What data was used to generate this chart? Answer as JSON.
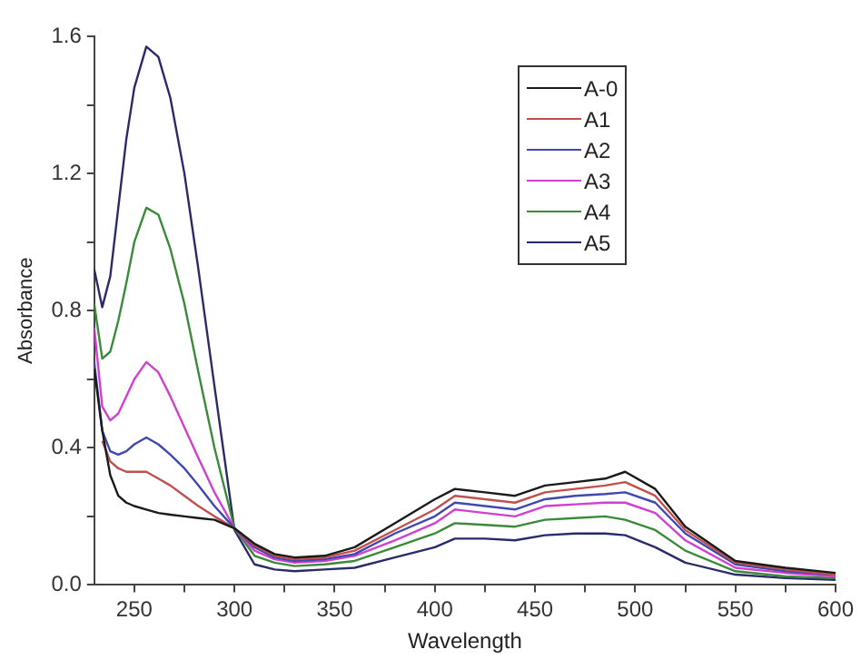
{
  "chart_data": {
    "type": "line",
    "xlabel": "Wavelength",
    "ylabel": "Absorbance",
    "legend": "top right",
    "grid": false,
    "marker": "none",
    "line_style": "solid",
    "xlim": [
      230,
      600
    ],
    "xticks": [
      250,
      {
        "value": 275,
        "label": null
      },
      300,
      {
        "value": 325,
        "label": null
      },
      350,
      {
        "value": 375,
        "label": null
      },
      400,
      {
        "value": 425,
        "label": null
      },
      450,
      {
        "value": 475,
        "label": null
      },
      500,
      {
        "value": 525,
        "label": null
      },
      550,
      {
        "value": 575,
        "label": null
      },
      600
    ],
    "ylim": [
      0,
      1.6
    ],
    "yticks": [
      {
        "value": 0,
        "label": "0.0"
      },
      {
        "value": 0.2,
        "label": null
      },
      0.4,
      {
        "value": 0.6,
        "label": null
      },
      0.8,
      {
        "value": 1.0,
        "label": null
      },
      1.2,
      {
        "value": 1.4,
        "label": null
      },
      1.6
    ],
    "x": [
      230,
      234,
      238,
      242,
      246,
      250,
      256,
      262,
      268,
      275,
      282,
      290,
      300,
      310,
      320,
      330,
      345,
      360,
      380,
      400,
      410,
      425,
      440,
      455,
      470,
      485,
      495,
      510,
      525,
      550,
      575,
      600
    ],
    "series": [
      {
        "name": "A-0",
        "color": "#1a1a1a",
        "values": [
          0.63,
          0.45,
          0.32,
          0.26,
          0.24,
          0.23,
          0.22,
          0.21,
          0.205,
          0.2,
          0.195,
          0.19,
          0.165,
          0.12,
          0.09,
          0.08,
          0.085,
          0.11,
          0.18,
          0.25,
          0.28,
          0.27,
          0.26,
          0.29,
          0.3,
          0.31,
          0.33,
          0.28,
          0.17,
          0.07,
          0.05,
          0.035
        ]
      },
      {
        "name": "A1",
        "color": "#c0504d",
        "values": [
          null,
          0.42,
          0.36,
          0.34,
          0.33,
          0.33,
          0.33,
          0.31,
          0.29,
          0.26,
          0.23,
          0.2,
          0.165,
          0.115,
          0.085,
          0.075,
          0.08,
          0.1,
          0.16,
          0.22,
          0.26,
          0.25,
          0.24,
          0.27,
          0.28,
          0.29,
          0.3,
          0.26,
          0.16,
          0.065,
          0.045,
          0.03
        ]
      },
      {
        "name": "A2",
        "color": "#3f48b0",
        "values": [
          0.65,
          0.45,
          0.39,
          0.38,
          0.39,
          0.41,
          0.43,
          0.41,
          0.38,
          0.34,
          0.29,
          0.23,
          0.165,
          0.11,
          0.08,
          0.07,
          0.075,
          0.09,
          0.15,
          0.2,
          0.24,
          0.23,
          0.22,
          0.25,
          0.26,
          0.265,
          0.27,
          0.24,
          0.15,
          0.06,
          0.04,
          0.03
        ]
      },
      {
        "name": "A3",
        "color": "#d040d0",
        "values": [
          0.75,
          0.52,
          0.48,
          0.5,
          0.55,
          0.6,
          0.65,
          0.62,
          0.55,
          0.46,
          0.37,
          0.27,
          0.165,
          0.1,
          0.075,
          0.065,
          0.07,
          0.085,
          0.13,
          0.18,
          0.22,
          0.21,
          0.2,
          0.23,
          0.235,
          0.24,
          0.24,
          0.21,
          0.13,
          0.05,
          0.035,
          0.025
        ]
      },
      {
        "name": "A4",
        "color": "#3a8a3a",
        "values": [
          0.82,
          0.66,
          0.68,
          0.77,
          0.88,
          1.0,
          1.1,
          1.08,
          0.98,
          0.82,
          0.62,
          0.4,
          0.165,
          0.085,
          0.065,
          0.055,
          0.06,
          0.07,
          0.11,
          0.15,
          0.18,
          0.175,
          0.17,
          0.19,
          0.195,
          0.2,
          0.19,
          0.16,
          0.1,
          0.04,
          0.025,
          0.02
        ]
      },
      {
        "name": "A5",
        "color": "#2a2a6a",
        "values": [
          0.92,
          0.81,
          0.9,
          1.1,
          1.3,
          1.45,
          1.57,
          1.54,
          1.42,
          1.2,
          0.92,
          0.58,
          0.16,
          0.06,
          0.045,
          0.04,
          0.045,
          0.05,
          0.08,
          0.11,
          0.135,
          0.135,
          0.13,
          0.145,
          0.15,
          0.15,
          0.145,
          0.11,
          0.065,
          0.03,
          0.02,
          0.015
        ]
      }
    ]
  }
}
